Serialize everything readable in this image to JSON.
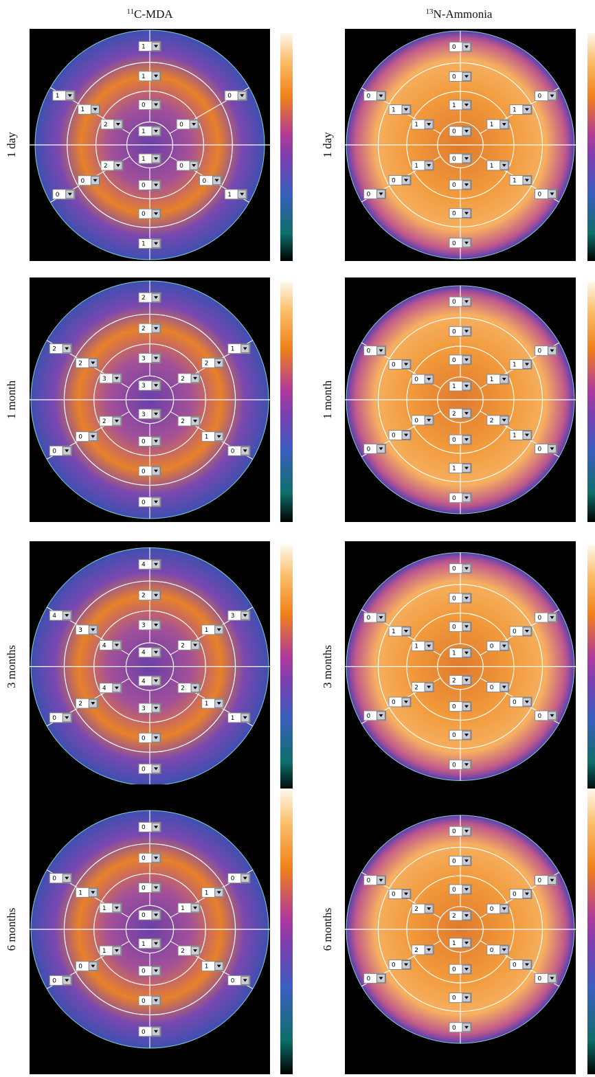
{
  "columns": [
    {
      "superscript": "11",
      "label": "C-MDA"
    },
    {
      "superscript": "13",
      "label": "N-Ammonia"
    }
  ],
  "rows": [
    {
      "label": "1 day",
      "maps": [
        [
          1,
          1,
          0,
          1,
          1,
          0,
          0,
          1,
          1,
          1,
          2,
          2,
          0,
          0,
          0,
          null,
          0,
          0,
          0,
          1
        ],
        [
          0,
          0,
          1,
          0,
          0,
          0,
          0,
          0,
          0,
          1,
          1,
          1,
          0,
          0,
          0,
          1,
          1,
          1,
          1,
          0
        ]
      ]
    },
    {
      "label": "1 month",
      "maps": [
        [
          2,
          2,
          3,
          3,
          3,
          0,
          0,
          0,
          2,
          2,
          3,
          2,
          0,
          0,
          1,
          2,
          2,
          2,
          1,
          0
        ],
        [
          0,
          0,
          0,
          1,
          2,
          0,
          1,
          0,
          0,
          0,
          0,
          0,
          0,
          0,
          0,
          1,
          1,
          2,
          1,
          0
        ]
      ]
    },
    {
      "label": "3 months",
      "maps": [
        [
          4,
          2,
          3,
          4,
          4,
          3,
          0,
          0,
          4,
          3,
          4,
          4,
          2,
          0,
          3,
          1,
          2,
          2,
          1,
          1
        ],
        [
          0,
          0,
          0,
          1,
          2,
          0,
          0,
          0,
          0,
          1,
          1,
          2,
          0,
          0,
          0,
          0,
          0,
          0,
          0,
          0
        ]
      ]
    },
    {
      "label": "6 months",
      "maps": [
        [
          0,
          0,
          0,
          0,
          1,
          0,
          0,
          0,
          0,
          1,
          1,
          1,
          0,
          0,
          0,
          1,
          1,
          2,
          1,
          0
        ],
        [
          0,
          0,
          0,
          2,
          1,
          0,
          0,
          0,
          0,
          0,
          2,
          2,
          0,
          0,
          0,
          0,
          0,
          0,
          0,
          0
        ]
      ]
    }
  ]
}
